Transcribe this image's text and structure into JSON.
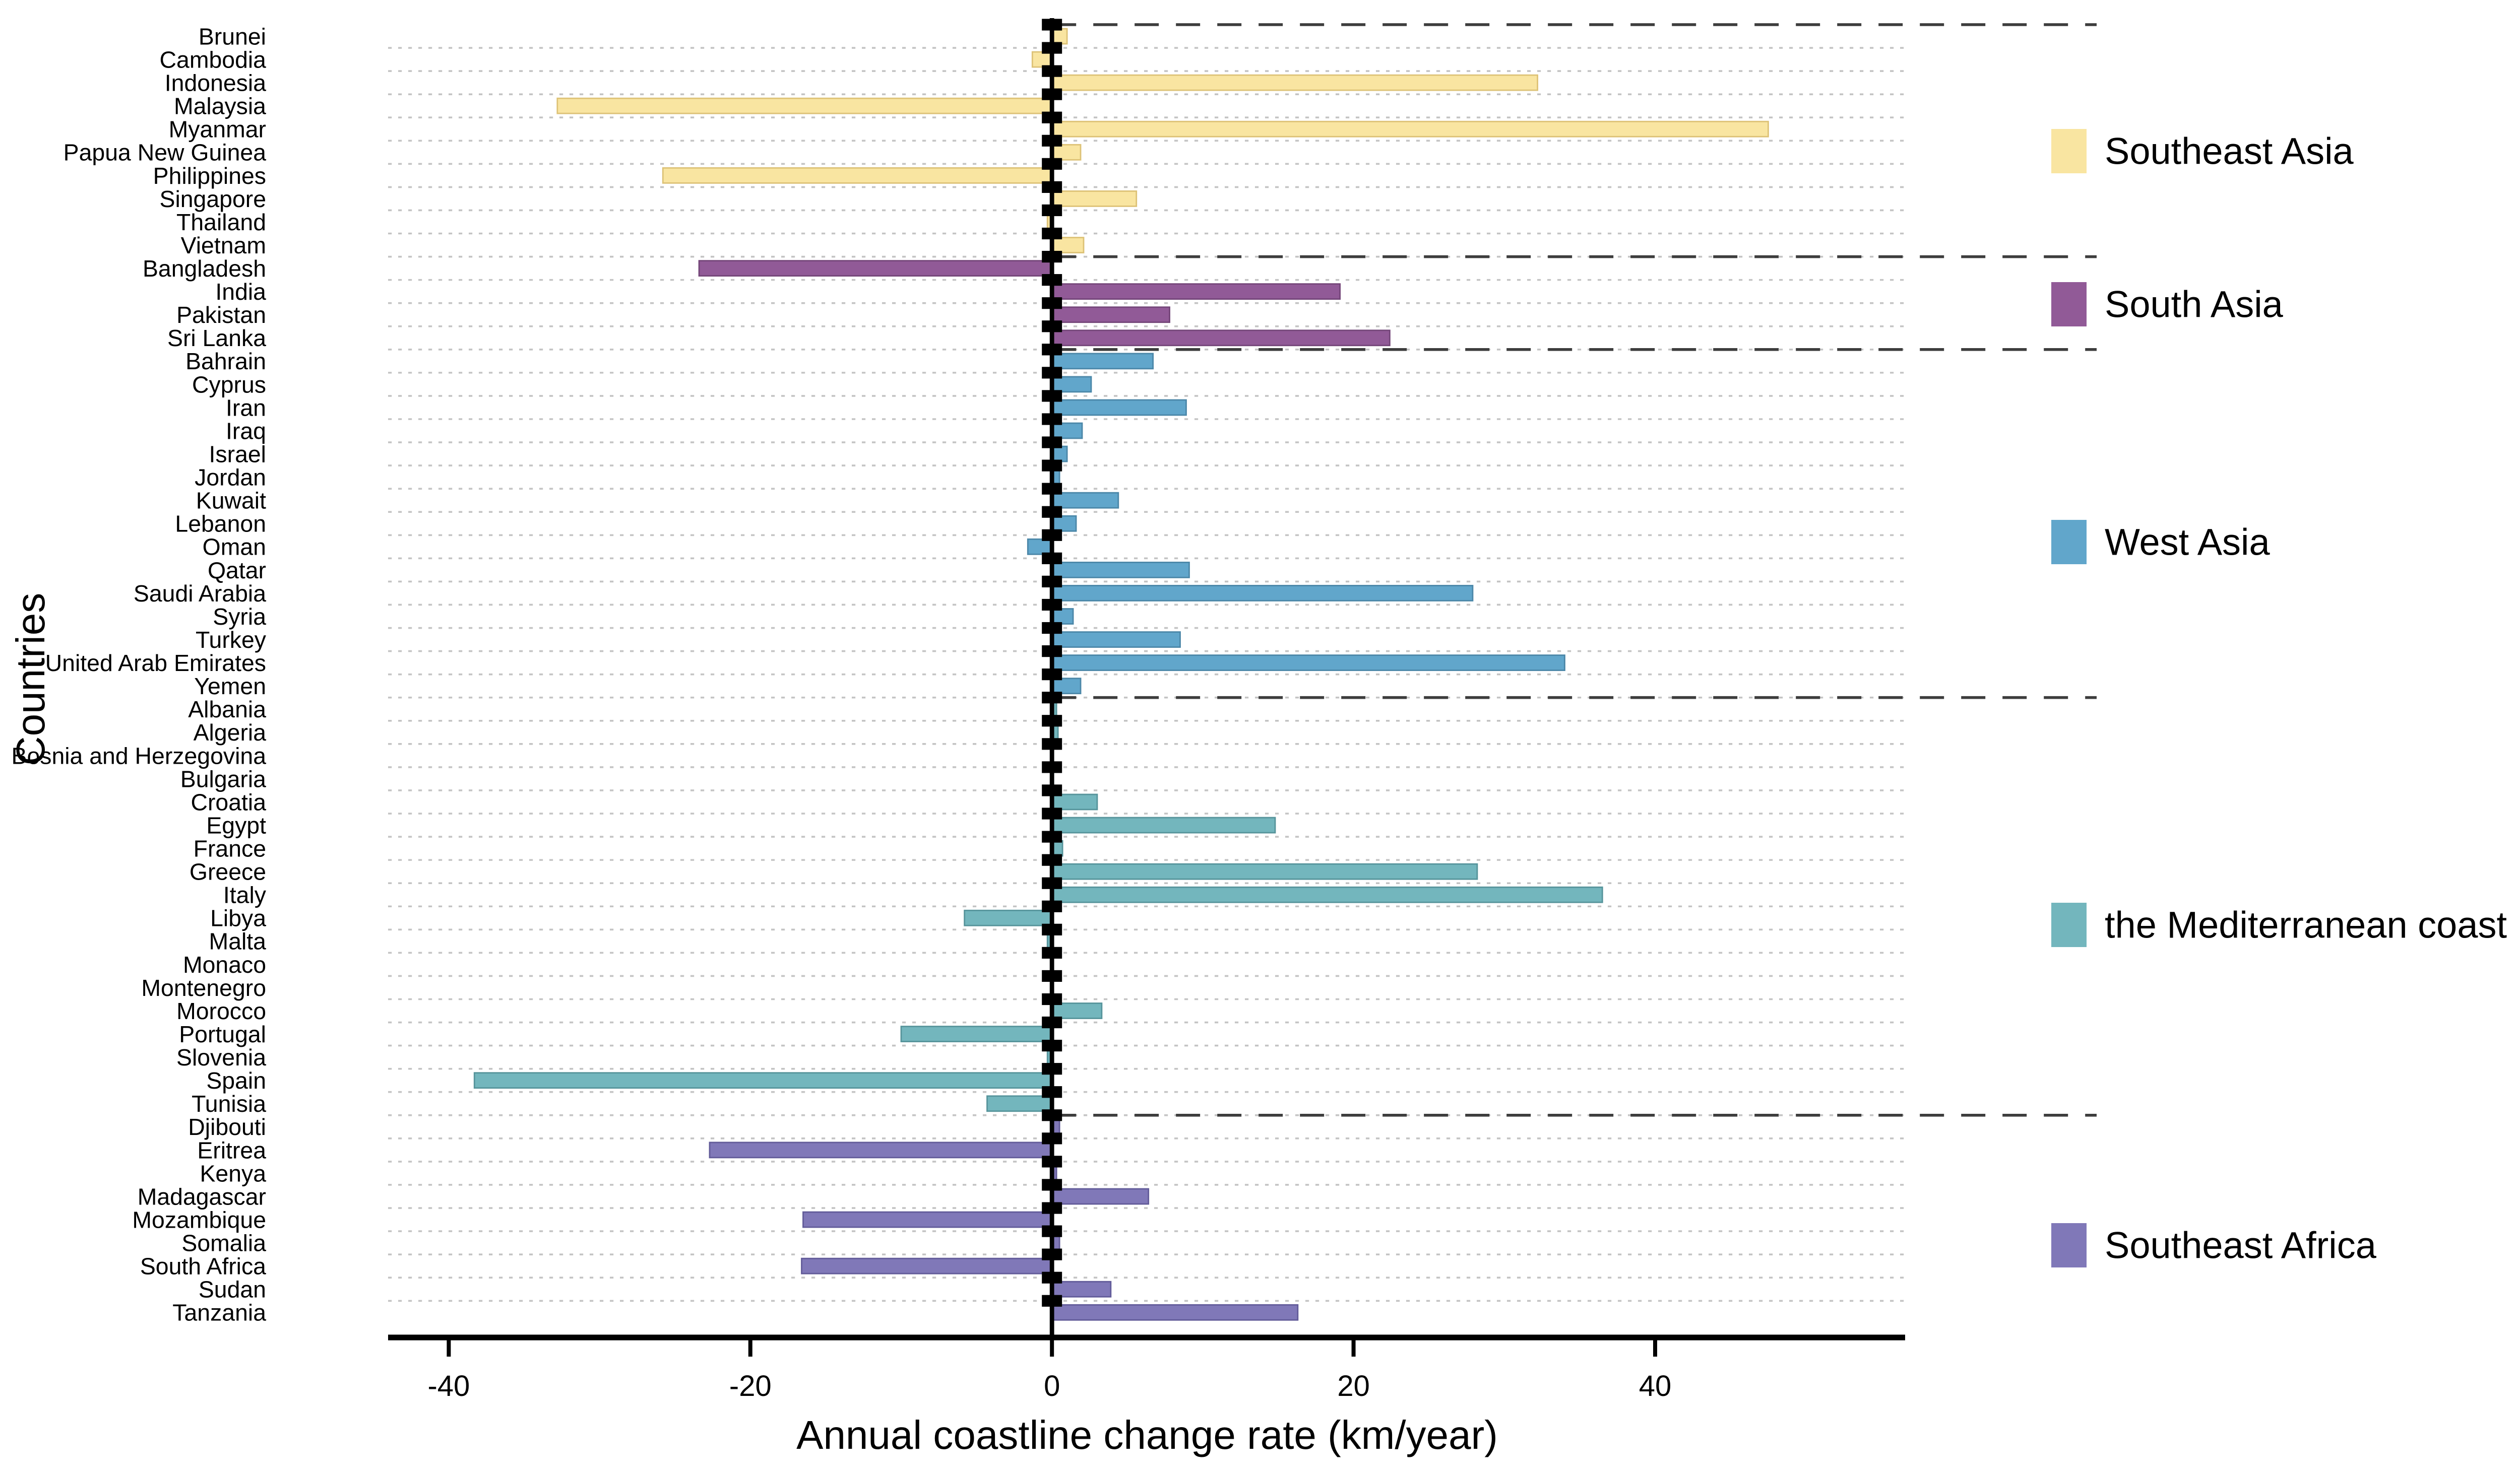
{
  "chart_data": {
    "type": "bar",
    "orientation": "horizontal",
    "title": "",
    "xlabel": "Annual coastline change rate (km/year)",
    "ylabel": "Countries",
    "xlim": [
      -44,
      57
    ],
    "x_ticks": [
      {
        "value": -40,
        "label": "-40"
      },
      {
        "value": -20,
        "label": "-20"
      },
      {
        "value": 0,
        "label": "0"
      },
      {
        "value": 20,
        "label": "20"
      },
      {
        "value": 40,
        "label": "40"
      }
    ],
    "grid": "dotted-horizontal-per-row",
    "legend_position": "right",
    "groups": [
      {
        "region": "Southeast Asia",
        "color": "#F9E5A1",
        "edge_color": "#DDC276",
        "countries": [
          {
            "name": "Brunei",
            "value": 1.0
          },
          {
            "name": "Cambodia",
            "value": -1.3
          },
          {
            "name": "Indonesia",
            "value": 32.2
          },
          {
            "name": "Malaysia",
            "value": -32.8
          },
          {
            "name": "Myanmar",
            "value": 47.5
          },
          {
            "name": "Papua New Guinea",
            "value": 1.9
          },
          {
            "name": "Philippines",
            "value": -25.8
          },
          {
            "name": "Singapore",
            "value": 5.6
          },
          {
            "name": "Thailand",
            "value": -0.3
          },
          {
            "name": "Vietnam",
            "value": 2.1
          }
        ]
      },
      {
        "region": "South Asia",
        "color": "#915A97",
        "edge_color": "#744679",
        "countries": [
          {
            "name": "Bangladesh",
            "value": -23.4
          },
          {
            "name": "India",
            "value": 19.1
          },
          {
            "name": "Pakistan",
            "value": 7.8
          },
          {
            "name": "Sri Lanka",
            "value": 22.4
          }
        ]
      },
      {
        "region": "West Asia",
        "color": "#61A6CB",
        "edge_color": "#4B87A8",
        "countries": [
          {
            "name": "Bahrain",
            "value": 6.7
          },
          {
            "name": "Cyprus",
            "value": 2.6
          },
          {
            "name": "Iran",
            "value": 8.9
          },
          {
            "name": "Iraq",
            "value": 2.0
          },
          {
            "name": "Israel",
            "value": 1.0
          },
          {
            "name": "Jordan",
            "value": 0.5
          },
          {
            "name": "Kuwait",
            "value": 4.4
          },
          {
            "name": "Lebanon",
            "value": 1.6
          },
          {
            "name": "Oman",
            "value": -1.6
          },
          {
            "name": "Qatar",
            "value": 9.1
          },
          {
            "name": "Saudi Arabia",
            "value": 27.9
          },
          {
            "name": "Syria",
            "value": 1.4
          },
          {
            "name": "Turkey",
            "value": 8.5
          },
          {
            "name": "United Arab Emirates",
            "value": 34.0
          },
          {
            "name": "Yemen",
            "value": 1.9
          }
        ]
      },
      {
        "region": "the Mediterranean coast",
        "color": "#73B6BD",
        "edge_color": "#56949B",
        "countries": [
          {
            "name": "Albania",
            "value": 0.3
          },
          {
            "name": "Algeria",
            "value": 0.4
          },
          {
            "name": "Bosnia and Herzegovina",
            "value": 0.1
          },
          {
            "name": "Bulgaria",
            "value": 0.1
          },
          {
            "name": "Croatia",
            "value": 3.0
          },
          {
            "name": "Egypt",
            "value": 14.8
          },
          {
            "name": "France",
            "value": 0.7
          },
          {
            "name": "Greece",
            "value": 28.2
          },
          {
            "name": "Italy",
            "value": 36.5
          },
          {
            "name": "Libya",
            "value": -5.8
          },
          {
            "name": "Malta",
            "value": -0.3
          },
          {
            "name": "Monaco",
            "value": 0.0
          },
          {
            "name": "Montenegro",
            "value": 0.0
          },
          {
            "name": "Morocco",
            "value": 3.3
          },
          {
            "name": "Portugal",
            "value": -10.0
          },
          {
            "name": "Slovenia",
            "value": -0.3
          },
          {
            "name": "Spain",
            "value": -38.3
          },
          {
            "name": "Tunisia",
            "value": -4.3
          }
        ]
      },
      {
        "region": "Southeast Africa",
        "color": "#8078B8",
        "edge_color": "#625B99",
        "countries": [
          {
            "name": "Djibouti",
            "value": 0.5
          },
          {
            "name": "Eritrea",
            "value": -22.7
          },
          {
            "name": "Kenya",
            "value": 0.3
          },
          {
            "name": "Madagascar",
            "value": 6.4
          },
          {
            "name": "Mozambique",
            "value": -16.5
          },
          {
            "name": "Somalia",
            "value": 0.5
          },
          {
            "name": "South Africa",
            "value": -16.6
          },
          {
            "name": "Sudan",
            "value": 3.9
          },
          {
            "name": "Tanzania",
            "value": 16.3
          }
        ]
      }
    ]
  },
  "legend": {
    "items": [
      {
        "label": "Southeast Asia",
        "color": "#F9E5A1"
      },
      {
        "label": "South Asia",
        "color": "#915A97"
      },
      {
        "label": "West Asia",
        "color": "#61A6CB"
      },
      {
        "label": "the Mediterranean coast",
        "color": "#73B6BD"
      },
      {
        "label": "Southeast Africa",
        "color": "#8078B8"
      }
    ]
  },
  "style_colors": {
    "grid_dotted": "#c4c4c4",
    "separator_dashed": "#3d3d3d",
    "axis": "#000000",
    "background": "#ffffff"
  }
}
